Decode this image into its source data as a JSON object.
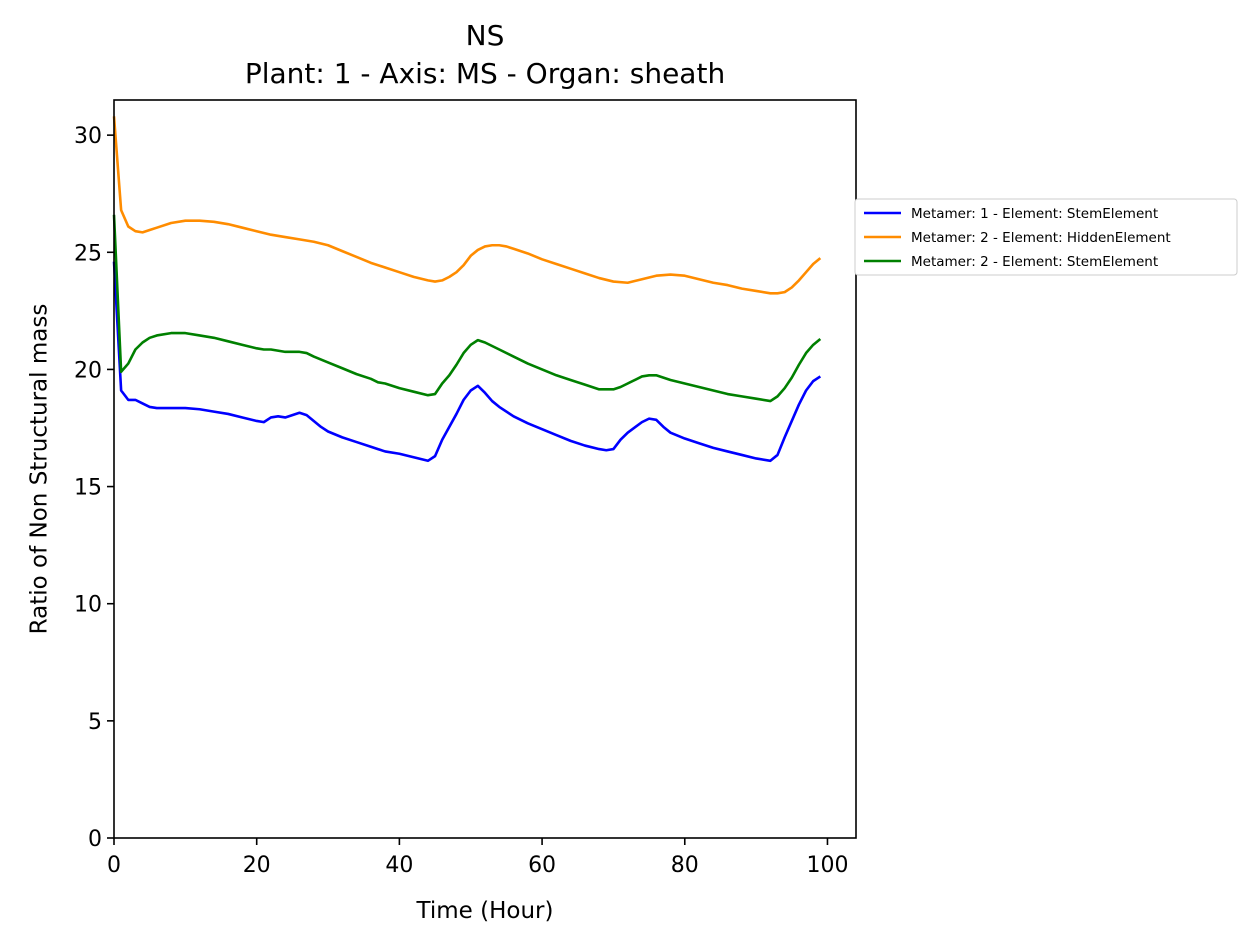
{
  "chart_data": {
    "type": "line",
    "title": "NS",
    "subtitle": "Plant: 1 - Axis: MS - Organ: sheath",
    "xlabel": "Time (Hour)",
    "ylabel": "Ratio of Non Structural mass",
    "xlim": [
      0,
      104
    ],
    "ylim": [
      0,
      31.5
    ],
    "xticks": [
      0,
      20,
      40,
      60,
      80,
      100
    ],
    "yticks": [
      0,
      5,
      10,
      15,
      20,
      25,
      30
    ],
    "grid": false,
    "legend_position": "right-outside",
    "series": [
      {
        "name": "Metamer: 1 - Element: StemElement",
        "color": "#0000ff",
        "x": [
          0,
          1,
          2,
          3,
          4,
          5,
          6,
          8,
          10,
          12,
          14,
          16,
          18,
          20,
          21,
          22,
          23,
          24,
          25,
          26,
          27,
          28,
          29,
          30,
          32,
          34,
          36,
          37,
          38,
          40,
          42,
          44,
          45,
          46,
          48,
          49,
          50,
          51,
          52,
          53,
          54,
          56,
          58,
          60,
          62,
          64,
          66,
          68,
          69,
          70,
          71,
          72,
          74,
          75,
          76,
          77,
          78,
          80,
          82,
          84,
          86,
          88,
          90,
          92,
          93,
          94,
          96,
          97,
          98,
          99
        ],
        "values": [
          24.6,
          19.1,
          18.7,
          18.7,
          18.55,
          18.4,
          18.35,
          18.35,
          18.35,
          18.3,
          18.2,
          18.1,
          17.95,
          17.8,
          17.75,
          17.95,
          18.0,
          17.95,
          18.05,
          18.15,
          18.05,
          17.8,
          17.55,
          17.35,
          17.1,
          16.9,
          16.7,
          16.6,
          16.5,
          16.4,
          16.25,
          16.1,
          16.3,
          17.0,
          18.1,
          18.7,
          19.1,
          19.3,
          19.0,
          18.65,
          18.4,
          18.0,
          17.7,
          17.45,
          17.2,
          16.95,
          16.75,
          16.6,
          16.55,
          16.6,
          17.0,
          17.3,
          17.75,
          17.9,
          17.85,
          17.55,
          17.3,
          17.05,
          16.85,
          16.65,
          16.5,
          16.35,
          16.2,
          16.1,
          16.35,
          17.1,
          18.5,
          19.1,
          19.5,
          19.7
        ]
      },
      {
        "name": "Metamer: 2 - Element: HiddenElement",
        "color": "#ff8c00",
        "x": [
          0,
          1,
          2,
          3,
          4,
          5,
          6,
          8,
          10,
          12,
          14,
          16,
          18,
          20,
          22,
          24,
          26,
          28,
          30,
          32,
          34,
          36,
          38,
          40,
          42,
          44,
          45,
          46,
          47,
          48,
          49,
          50,
          51,
          52,
          53,
          54,
          55,
          56,
          58,
          60,
          62,
          64,
          66,
          68,
          70,
          72,
          74,
          76,
          78,
          80,
          82,
          84,
          86,
          88,
          90,
          92,
          93,
          94,
          95,
          96,
          97,
          98,
          99
        ],
        "values": [
          30.8,
          26.8,
          26.1,
          25.9,
          25.85,
          25.95,
          26.05,
          26.25,
          26.35,
          26.35,
          26.3,
          26.2,
          26.05,
          25.9,
          25.75,
          25.65,
          25.55,
          25.45,
          25.3,
          25.05,
          24.8,
          24.55,
          24.35,
          24.15,
          23.95,
          23.8,
          23.75,
          23.8,
          23.95,
          24.15,
          24.45,
          24.85,
          25.1,
          25.25,
          25.3,
          25.3,
          25.25,
          25.15,
          24.95,
          24.7,
          24.5,
          24.3,
          24.1,
          23.9,
          23.75,
          23.7,
          23.85,
          24.0,
          24.05,
          24.0,
          23.85,
          23.7,
          23.6,
          23.45,
          23.35,
          23.25,
          23.25,
          23.3,
          23.5,
          23.8,
          24.15,
          24.5,
          24.75
        ]
      },
      {
        "name": "Metamer: 2 - Element: StemElement",
        "color": "#008000",
        "x": [
          0,
          1,
          2,
          3,
          4,
          5,
          6,
          8,
          10,
          12,
          14,
          16,
          18,
          20,
          21,
          22,
          24,
          26,
          27,
          28,
          30,
          32,
          34,
          36,
          37,
          38,
          40,
          42,
          44,
          45,
          46,
          47,
          48,
          49,
          50,
          51,
          52,
          54,
          56,
          58,
          60,
          62,
          64,
          66,
          68,
          70,
          71,
          72,
          74,
          75,
          76,
          78,
          80,
          82,
          84,
          86,
          88,
          90,
          92,
          93,
          94,
          95,
          96,
          97,
          98,
          99
        ],
        "values": [
          26.6,
          19.9,
          20.25,
          20.85,
          21.15,
          21.35,
          21.45,
          21.55,
          21.55,
          21.45,
          21.35,
          21.2,
          21.05,
          20.9,
          20.85,
          20.85,
          20.75,
          20.75,
          20.7,
          20.55,
          20.3,
          20.05,
          19.8,
          19.6,
          19.45,
          19.4,
          19.2,
          19.05,
          18.9,
          18.95,
          19.4,
          19.75,
          20.2,
          20.7,
          21.05,
          21.25,
          21.15,
          20.85,
          20.55,
          20.25,
          20.0,
          19.75,
          19.55,
          19.35,
          19.15,
          19.15,
          19.25,
          19.4,
          19.7,
          19.75,
          19.75,
          19.55,
          19.4,
          19.25,
          19.1,
          18.95,
          18.85,
          18.75,
          18.65,
          18.85,
          19.2,
          19.65,
          20.2,
          20.7,
          21.05,
          21.3
        ]
      }
    ]
  }
}
